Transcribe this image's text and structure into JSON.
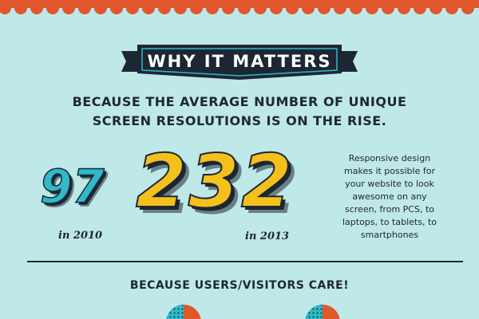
{
  "colors": {
    "background": "#bfe8e8",
    "accent_red": "#e0572b",
    "dark": "#1d2733",
    "teal": "#2fb9c9",
    "yellow": "#f5c01c"
  },
  "banner": {
    "title": "WHY IT MATTERS"
  },
  "headline": {
    "line1": "BECAUSE THE AVERAGE NUMBER OF UNIQUE",
    "line2": "SCREEN RESOLUTIONS IS ON THE RISE."
  },
  "stats": [
    {
      "value": "97",
      "year": "in 2010"
    },
    {
      "value": "232",
      "year": "in 2013"
    }
  ],
  "side_note": {
    "lines": [
      "Responsive design",
      "makes it possible for",
      "your website to look",
      "awesome on any",
      "screen, from PCS, to",
      "laptops, to tablets, to",
      "smartphones"
    ]
  },
  "subhead": "BECAUSE USERS/VISITORS CARE!"
}
